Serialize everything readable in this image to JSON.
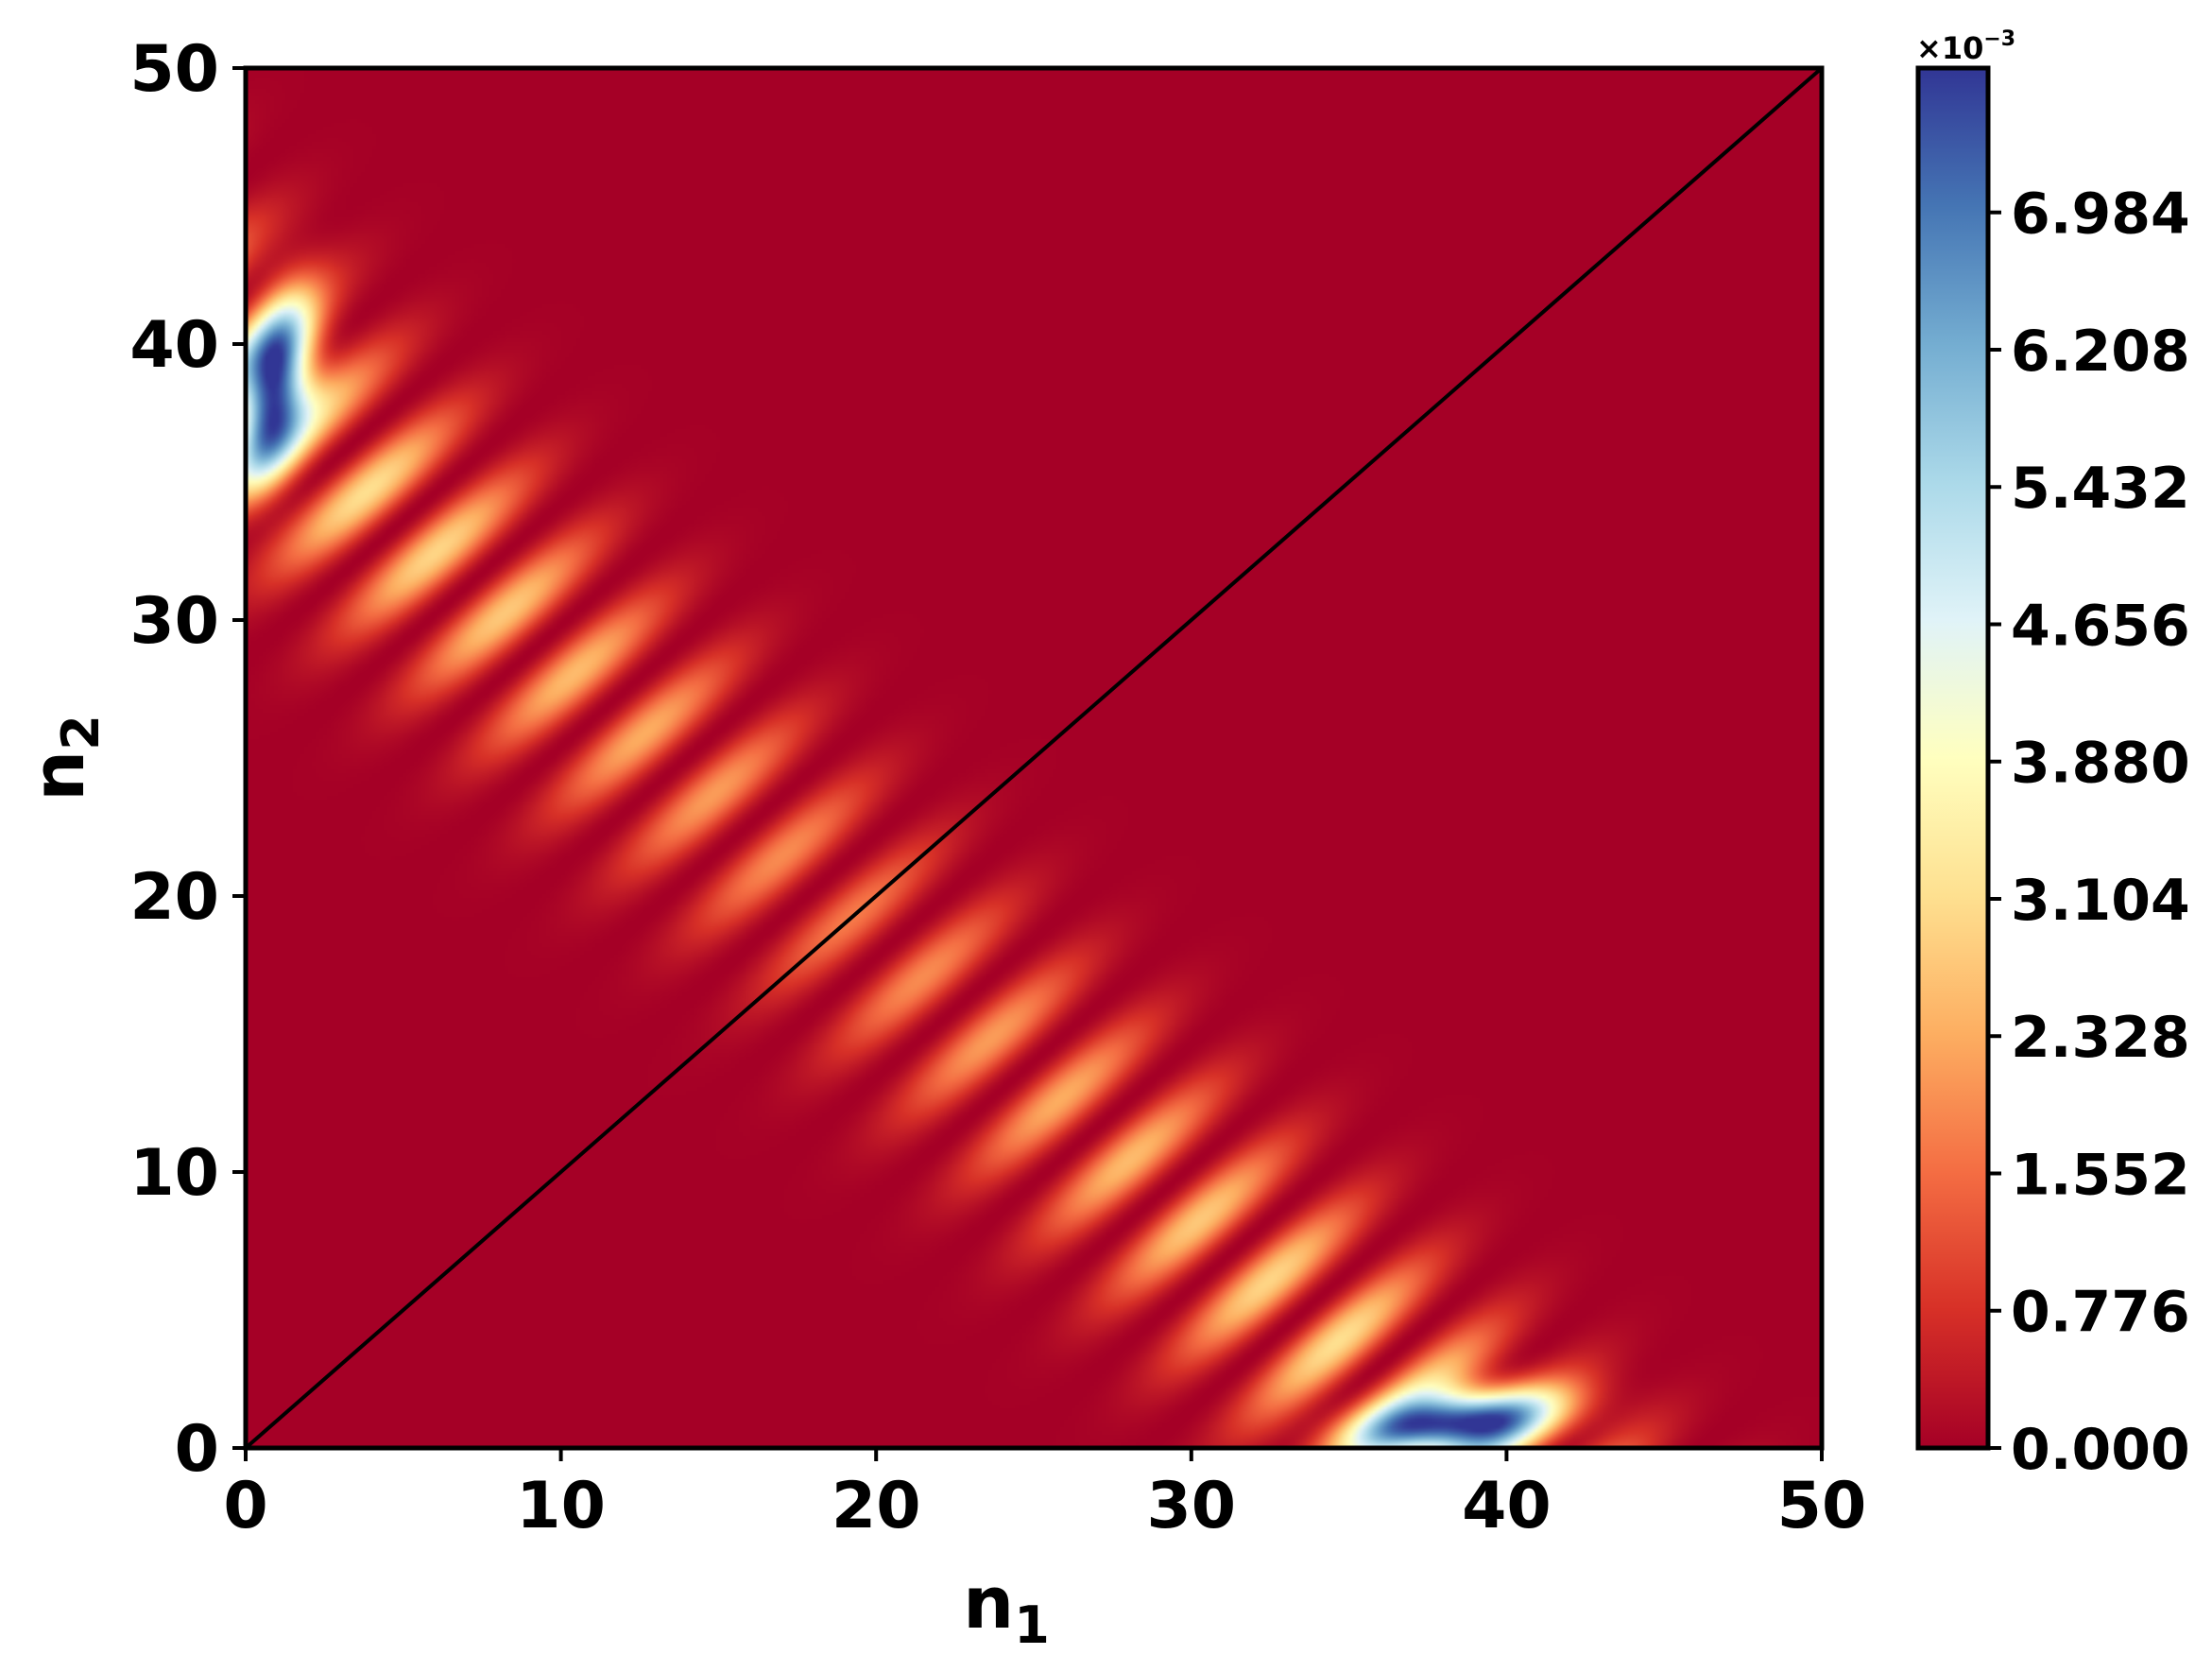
{
  "chart_data": {
    "type": "heatmap",
    "title": "",
    "xlabel": "n",
    "xlabel_sub": "1",
    "ylabel": "n",
    "ylabel_sub": "2",
    "xlim": [
      0,
      50
    ],
    "ylim": [
      0,
      50
    ],
    "x_ticks": [
      "0",
      "10",
      "20",
      "30",
      "40",
      "50"
    ],
    "y_ticks": [
      "0",
      "10",
      "20",
      "30",
      "40",
      "50"
    ],
    "x_tick_values": [
      0,
      10,
      20,
      30,
      40,
      50
    ],
    "y_tick_values": [
      0,
      10,
      20,
      30,
      40,
      50
    ],
    "diagonal_line": {
      "from": [
        0,
        0
      ],
      "to": [
        50,
        50
      ],
      "color": "#000000"
    },
    "colorbar": {
      "colormap": "RdYlBu_r",
      "min": 0.0,
      "max": 0.0078,
      "multiplier_label": "×10",
      "multiplier_exponent": "−3",
      "ticks": [
        "0.000",
        "0.776",
        "1.552",
        "2.328",
        "3.104",
        "3.880",
        "4.656",
        "5.432",
        "6.208",
        "6.984"
      ],
      "tick_values": [
        0.0,
        0.776,
        1.552,
        2.328,
        3.104,
        3.88,
        4.656,
        5.432,
        6.208,
        6.984
      ],
      "colors": [
        "#a50026",
        "#d73027",
        "#f46d43",
        "#fdae61",
        "#fee090",
        "#ffffbf",
        "#e0f3f8",
        "#abd9e9",
        "#74add1",
        "#4575b4",
        "#313695"
      ]
    },
    "grid": false,
    "description_values": {
      "pattern": "symmetric about n1=n2, fringes along anti-diagonal band, peaks near (1,38) and (38,1)",
      "peak_value": 0.0078
    }
  }
}
